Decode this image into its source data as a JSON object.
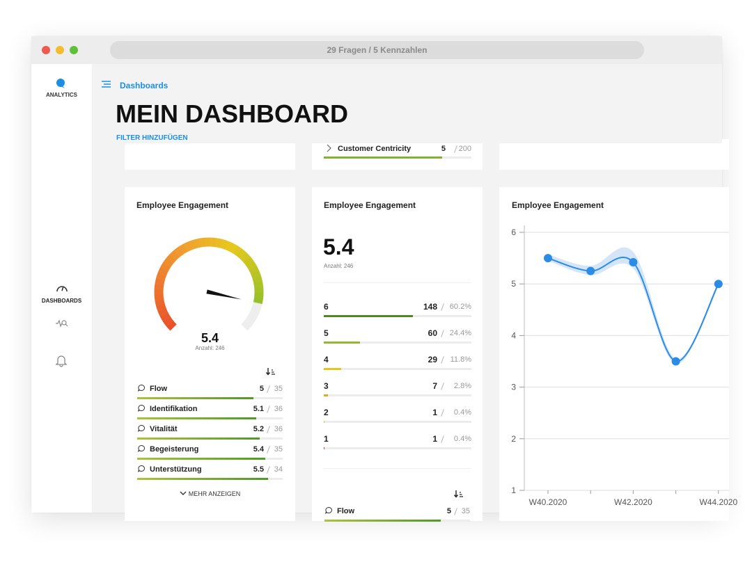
{
  "window": {
    "title": "29 Fragen / 5 Kennzahlen"
  },
  "sidebar": {
    "logo": "ANALYTICS",
    "nav": [
      "DASHBOARDS"
    ]
  },
  "header": {
    "breadcrumb": "Dashboards",
    "title": "MEIN DASHBOARD",
    "filter": "FILTER HINZUFÜGEN"
  },
  "top_card": {
    "name": "Customer Centricity",
    "score": 5,
    "count": 200
  },
  "gauge_card": {
    "title": "Employee Engagement",
    "value": 5.4,
    "count_label": "Anzahl: 246",
    "items": [
      {
        "name": "Flow",
        "score": 5,
        "count": 35
      },
      {
        "name": "Identifikation",
        "score": 5.1,
        "count": 36
      },
      {
        "name": "Vitalität",
        "score": 5.2,
        "count": 36
      },
      {
        "name": "Begeisterung",
        "score": 5.4,
        "count": 35
      },
      {
        "name": "Unterstützung",
        "score": 5.5,
        "count": 34
      }
    ],
    "more": "MEHR ANZEIGEN"
  },
  "distribution_card": {
    "title": "Employee Engagement",
    "value": 5.4,
    "count_label": "Anzahl: 246",
    "rows": [
      {
        "answer": 6,
        "count": 148,
        "percent": 60.2,
        "percent_label": "60.2%",
        "color": "#4a8a1f"
      },
      {
        "answer": 5,
        "count": 60,
        "percent": 24.4,
        "percent_label": "24.4%",
        "color": "#8fba2c"
      },
      {
        "answer": 4,
        "count": 29,
        "percent": 11.8,
        "percent_label": "11.8%",
        "color": "#e6c61c"
      },
      {
        "answer": 3,
        "count": 7,
        "percent": 2.8,
        "percent_label": "2.8%",
        "color": "#eba61d"
      },
      {
        "answer": 2,
        "count": 1,
        "percent": 0.4,
        "percent_label": "0.4%",
        "color": "#e5bf1e"
      },
      {
        "answer": 1,
        "count": 1,
        "percent": 0.4,
        "percent_label": "0.4%",
        "color": "#e2452a"
      }
    ],
    "items": [
      {
        "name": "Flow",
        "score": 5,
        "count": 35
      }
    ]
  },
  "chart_data": {
    "type": "line",
    "title": "Employee Engagement",
    "categories": [
      "W40.2020",
      null,
      "W42.2020",
      null,
      "W44.2020"
    ],
    "series": [
      {
        "color": "#2b8ce6",
        "values": [
          5.5,
          5.25,
          5.42,
          3.5,
          5.0
        ]
      }
    ],
    "band": {
      "color": "#cfe2f7",
      "upper": [
        5.57,
        5.35,
        5.62,
        3.55,
        5.05
      ],
      "lower": [
        5.45,
        5.17,
        5.3,
        3.45,
        4.95
      ]
    },
    "ylim": [
      1,
      6
    ],
    "yticks": [
      1,
      2,
      3,
      4,
      5,
      6
    ],
    "grid": true
  }
}
